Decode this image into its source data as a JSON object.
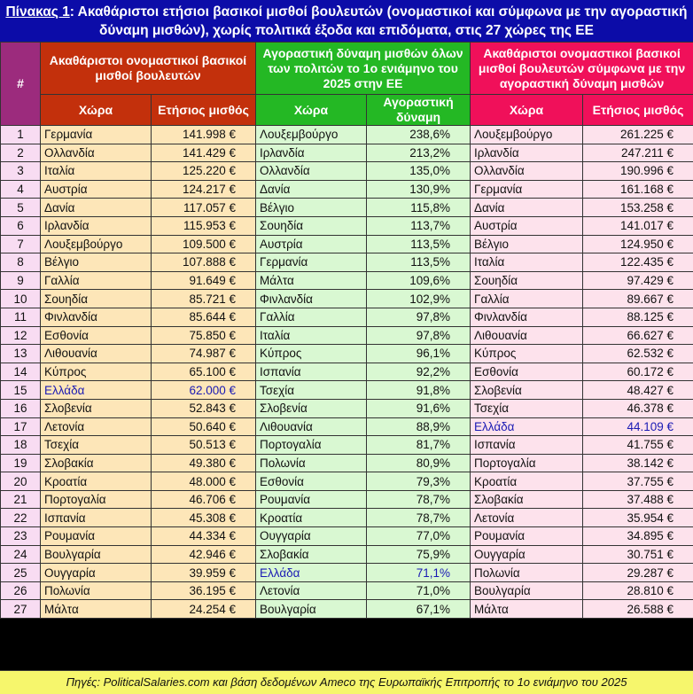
{
  "title": {
    "label": "Πίνακας 1",
    "text": ": Ακαθάριστοι ετήσιοι βασικοί μισθοί βουλευτών (ονομαστικοί και σύμφωνα με την αγοραστική δύναμη μισθών), χωρίς πολιτικά έξοδα και επιδόματα, στις 27 χώρες της ΕΕ"
  },
  "headers": {
    "num": "#",
    "group1": "Ακαθάριστοι ονομαστικοί βασικοί μισθοί βουλευτών",
    "group2": "Αγοραστική δύναμη μισθών όλων των πολιτών το 1ο ενιάμηνο του 2025 στην ΕΕ",
    "group3": "Ακαθάριστοι ονομαστικοί βασικοί μισθοί βουλευτών σύμφωνα με την αγοραστική δύναμη μισθών",
    "country": "Χώρα",
    "salary": "Ετήσιος μισθός",
    "power": "Αγοραστική δύναμη"
  },
  "highlight_color": "#1a1ab4",
  "rows": [
    {
      "n": "1",
      "c1": "Γερμανία",
      "v1": "141.998 €",
      "c2": "Λουξεμβούργο",
      "v2": "238,6%",
      "c3": "Λουξεμβούργο",
      "v3": "261.225 €"
    },
    {
      "n": "2",
      "c1": "Ολλανδία",
      "v1": "141.429 €",
      "c2": "Ιρλανδία",
      "v2": "213,2%",
      "c3": "Ιρλανδία",
      "v3": "247.211 €"
    },
    {
      "n": "3",
      "c1": "Ιταλία",
      "v1": "125.220 €",
      "c2": "Ολλανδία",
      "v2": "135,0%",
      "c3": "Ολλανδία",
      "v3": "190.996 €"
    },
    {
      "n": "4",
      "c1": "Αυστρία",
      "v1": "124.217 €",
      "c2": "Δανία",
      "v2": "130,9%",
      "c3": "Γερμανία",
      "v3": "161.168 €"
    },
    {
      "n": "5",
      "c1": "Δανία",
      "v1": "117.057 €",
      "c2": "Βέλγιο",
      "v2": "115,8%",
      "c3": "Δανία",
      "v3": "153.258 €"
    },
    {
      "n": "6",
      "c1": "Ιρλανδία",
      "v1": "115.953 €",
      "c2": "Σουηδία",
      "v2": "113,7%",
      "c3": "Αυστρία",
      "v3": "141.017 €"
    },
    {
      "n": "7",
      "c1": "Λουξεμβούργο",
      "v1": "109.500 €",
      "c2": "Αυστρία",
      "v2": "113,5%",
      "c3": "Βέλγιο",
      "v3": "124.950 €"
    },
    {
      "n": "8",
      "c1": "Βέλγιο",
      "v1": "107.888 €",
      "c2": "Γερμανία",
      "v2": "113,5%",
      "c3": "Ιταλία",
      "v3": "122.435 €"
    },
    {
      "n": "9",
      "c1": "Γαλλία",
      "v1": "91.649 €",
      "c2": "Μάλτα",
      "v2": "109,6%",
      "c3": "Σουηδία",
      "v3": "97.429 €"
    },
    {
      "n": "10",
      "c1": "Σουηδία",
      "v1": "85.721 €",
      "c2": "Φινλανδία",
      "v2": "102,9%",
      "c3": "Γαλλία",
      "v3": "89.667 €"
    },
    {
      "n": "11",
      "c1": "Φινλανδία",
      "v1": "85.644 €",
      "c2": "Γαλλία",
      "v2": "97,8%",
      "c3": "Φινλανδία",
      "v3": "88.125 €"
    },
    {
      "n": "12",
      "c1": "Εσθονία",
      "v1": "75.850 €",
      "c2": "Ιταλία",
      "v2": "97,8%",
      "c3": "Λιθουανία",
      "v3": "66.627 €"
    },
    {
      "n": "13",
      "c1": "Λιθουανία",
      "v1": "74.987 €",
      "c2": "Κύπρος",
      "v2": "96,1%",
      "c3": "Κύπρος",
      "v3": "62.532 €"
    },
    {
      "n": "14",
      "c1": "Κύπρος",
      "v1": "65.100 €",
      "c2": "Ισπανία",
      "v2": "92,2%",
      "c3": "Εσθονία",
      "v3": "60.172 €"
    },
    {
      "n": "15",
      "c1": "Ελλάδα",
      "v1": "62.000 €",
      "c2": "Τσεχία",
      "v2": "91,8%",
      "c3": "Σλοβενία",
      "v3": "48.427 €",
      "h1": true
    },
    {
      "n": "16",
      "c1": "Σλοβενία",
      "v1": "52.843 €",
      "c2": "Σλοβενία",
      "v2": "91,6%",
      "c3": "Τσεχία",
      "v3": "46.378 €"
    },
    {
      "n": "17",
      "c1": "Λετονία",
      "v1": "50.640 €",
      "c2": "Λιθουανία",
      "v2": "88,9%",
      "c3": "Ελλάδα",
      "v3": "44.109 €",
      "h3": true
    },
    {
      "n": "18",
      "c1": "Τσεχία",
      "v1": "50.513 €",
      "c2": "Πορτογαλία",
      "v2": "81,7%",
      "c3": "Ισπανία",
      "v3": "41.755 €"
    },
    {
      "n": "19",
      "c1": "Σλοβακία",
      "v1": "49.380 €",
      "c2": "Πολωνία",
      "v2": "80,9%",
      "c3": "Πορτογαλία",
      "v3": "38.142 €"
    },
    {
      "n": "20",
      "c1": "Κροατία",
      "v1": "48.000 €",
      "c2": "Εσθονία",
      "v2": "79,3%",
      "c3": "Κροατία",
      "v3": "37.755 €"
    },
    {
      "n": "21",
      "c1": "Πορτογαλία",
      "v1": "46.706 €",
      "c2": "Ρουμανία",
      "v2": "78,7%",
      "c3": "Σλοβακία",
      "v3": "37.488 €"
    },
    {
      "n": "22",
      "c1": "Ισπανία",
      "v1": "45.308 €",
      "c2": "Κροατία",
      "v2": "78,7%",
      "c3": "Λετονία",
      "v3": "35.954 €"
    },
    {
      "n": "23",
      "c1": "Ρουμανία",
      "v1": "44.334 €",
      "c2": "Ουγγαρία",
      "v2": "77,0%",
      "c3": "Ρουμανία",
      "v3": "34.895 €"
    },
    {
      "n": "24",
      "c1": "Βουλγαρία",
      "v1": "42.946 €",
      "c2": "Σλοβακία",
      "v2": "75,9%",
      "c3": "Ουγγαρία",
      "v3": "30.751 €"
    },
    {
      "n": "25",
      "c1": "Ουγγαρία",
      "v1": "39.959 €",
      "c2": "Ελλάδα",
      "v2": "71,1%",
      "c3": "Πολωνία",
      "v3": "29.287 €",
      "h2": true
    },
    {
      "n": "26",
      "c1": "Πολωνία",
      "v1": "36.195 €",
      "c2": "Λετονία",
      "v2": "71,0%",
      "c3": "Βουλγαρία",
      "v3": "28.810 €"
    },
    {
      "n": "27",
      "c1": "Μάλτα",
      "v1": "24.254 €",
      "c2": "Βουλγαρία",
      "v2": "67,1%",
      "c3": "Μάλτα",
      "v3": "26.588 €"
    }
  ],
  "footer": "Πηγές: PoliticalSalaries.com και βάση δεδομένων Ameco της Ευρωπαϊκής Επιτροπής το 1ο ενιάμηνο του 2025"
}
